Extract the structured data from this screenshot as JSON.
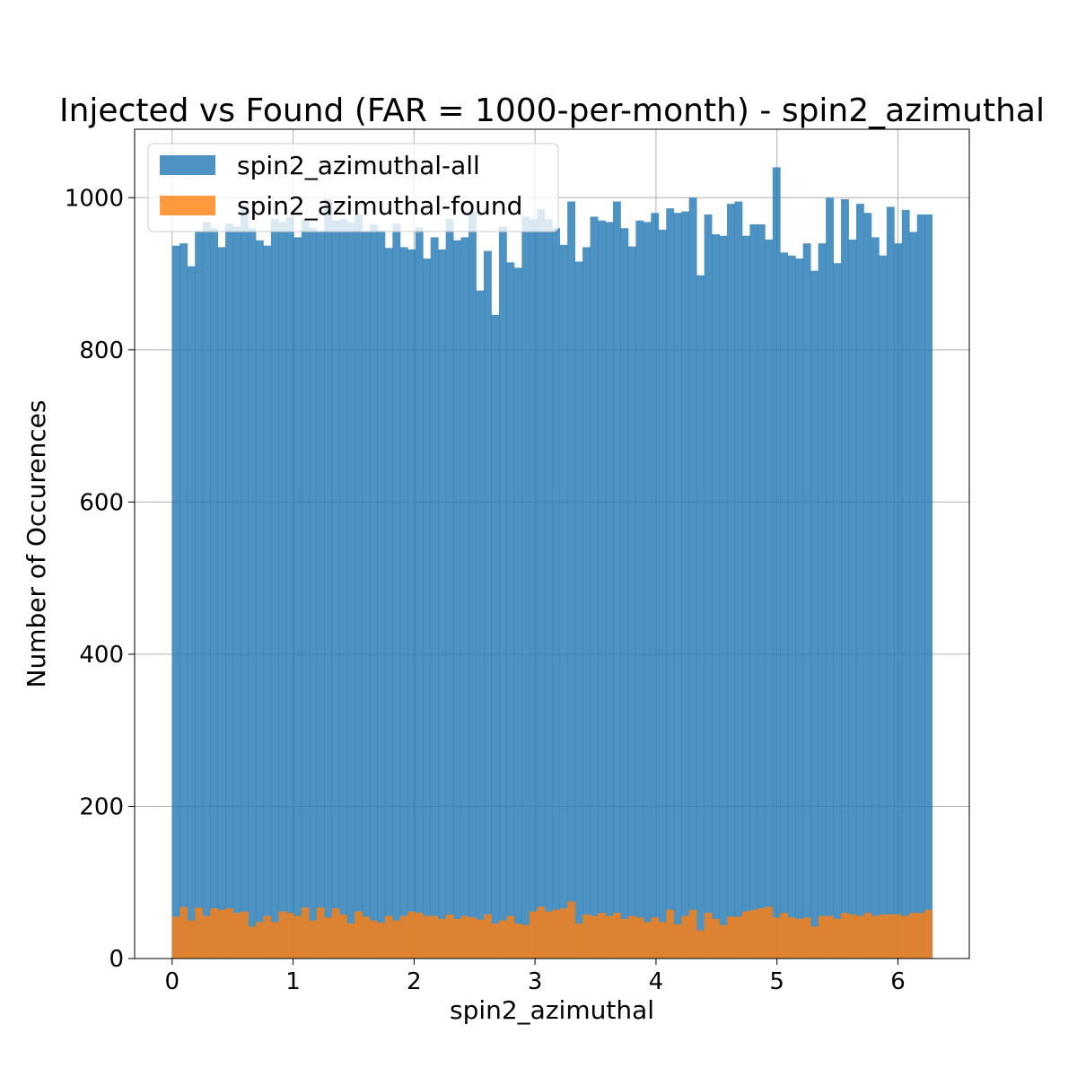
{
  "chart_data": {
    "type": "bar",
    "title": "Injected vs Found (FAR = 1000-per-month) - spin2_azimuthal",
    "xlabel": "spin2_azimuthal",
    "ylabel": "Number of Occurences",
    "xlim": [
      -0.31,
      6.59
    ],
    "ylim": [
      0,
      1090
    ],
    "bin_range": [
      0,
      6.2832
    ],
    "xticks": [
      0,
      1,
      2,
      3,
      4,
      5,
      6
    ],
    "yticks": [
      0,
      200,
      400,
      600,
      800,
      1000
    ],
    "grid": true,
    "legend_position": "upper-left",
    "series": [
      {
        "name": "spin2_azimuthal-all",
        "color": "#1f77b4",
        "values": [
          937,
          940,
          910,
          955,
          968,
          960,
          935,
          966,
          962,
          990,
          960,
          944,
          937,
          972,
          968,
          975,
          948,
          972,
          960,
          955,
          998,
          970,
          972,
          968,
          978,
          955,
          965,
          957,
          934,
          966,
          935,
          932,
          961,
          920,
          948,
          932,
          972,
          944,
          948,
          982,
          878,
          930,
          846,
          962,
          915,
          908,
          975,
          972,
          985,
          972,
          960,
          938,
          995,
          916,
          935,
          975,
          970,
          968,
          995,
          960,
          936,
          970,
          968,
          980,
          958,
          986,
          980,
          982,
          1000,
          898,
          978,
          952,
          950,
          992,
          995,
          950,
          965,
          965,
          945,
          1040,
          928,
          924,
          920,
          940,
          904,
          940,
          1000,
          914,
          998,
          945,
          992,
          980,
          948,
          924,
          988,
          940,
          984,
          955,
          978,
          978
        ]
      },
      {
        "name": "spin2_azimuthal-found",
        "color": "#ff7f0e",
        "values": [
          55,
          68,
          50,
          67,
          56,
          66,
          64,
          66,
          60,
          62,
          42,
          48,
          56,
          48,
          62,
          60,
          56,
          67,
          50,
          67,
          54,
          66,
          58,
          46,
          62,
          55,
          50,
          47,
          56,
          50,
          56,
          62,
          60,
          56,
          56,
          52,
          58,
          52,
          56,
          54,
          51,
          58,
          46,
          50,
          56,
          46,
          44,
          62,
          68,
          62,
          64,
          66,
          75,
          46,
          58,
          56,
          60,
          56,
          60,
          52,
          56,
          54,
          48,
          54,
          48,
          64,
          45,
          56,
          64,
          37,
          60,
          52,
          44,
          55,
          55,
          62,
          64,
          66,
          68,
          54,
          60,
          54,
          52,
          54,
          42,
          56,
          56,
          52,
          60,
          58,
          56,
          60,
          56,
          58,
          58,
          58,
          56,
          60,
          60,
          64
        ]
      }
    ]
  }
}
